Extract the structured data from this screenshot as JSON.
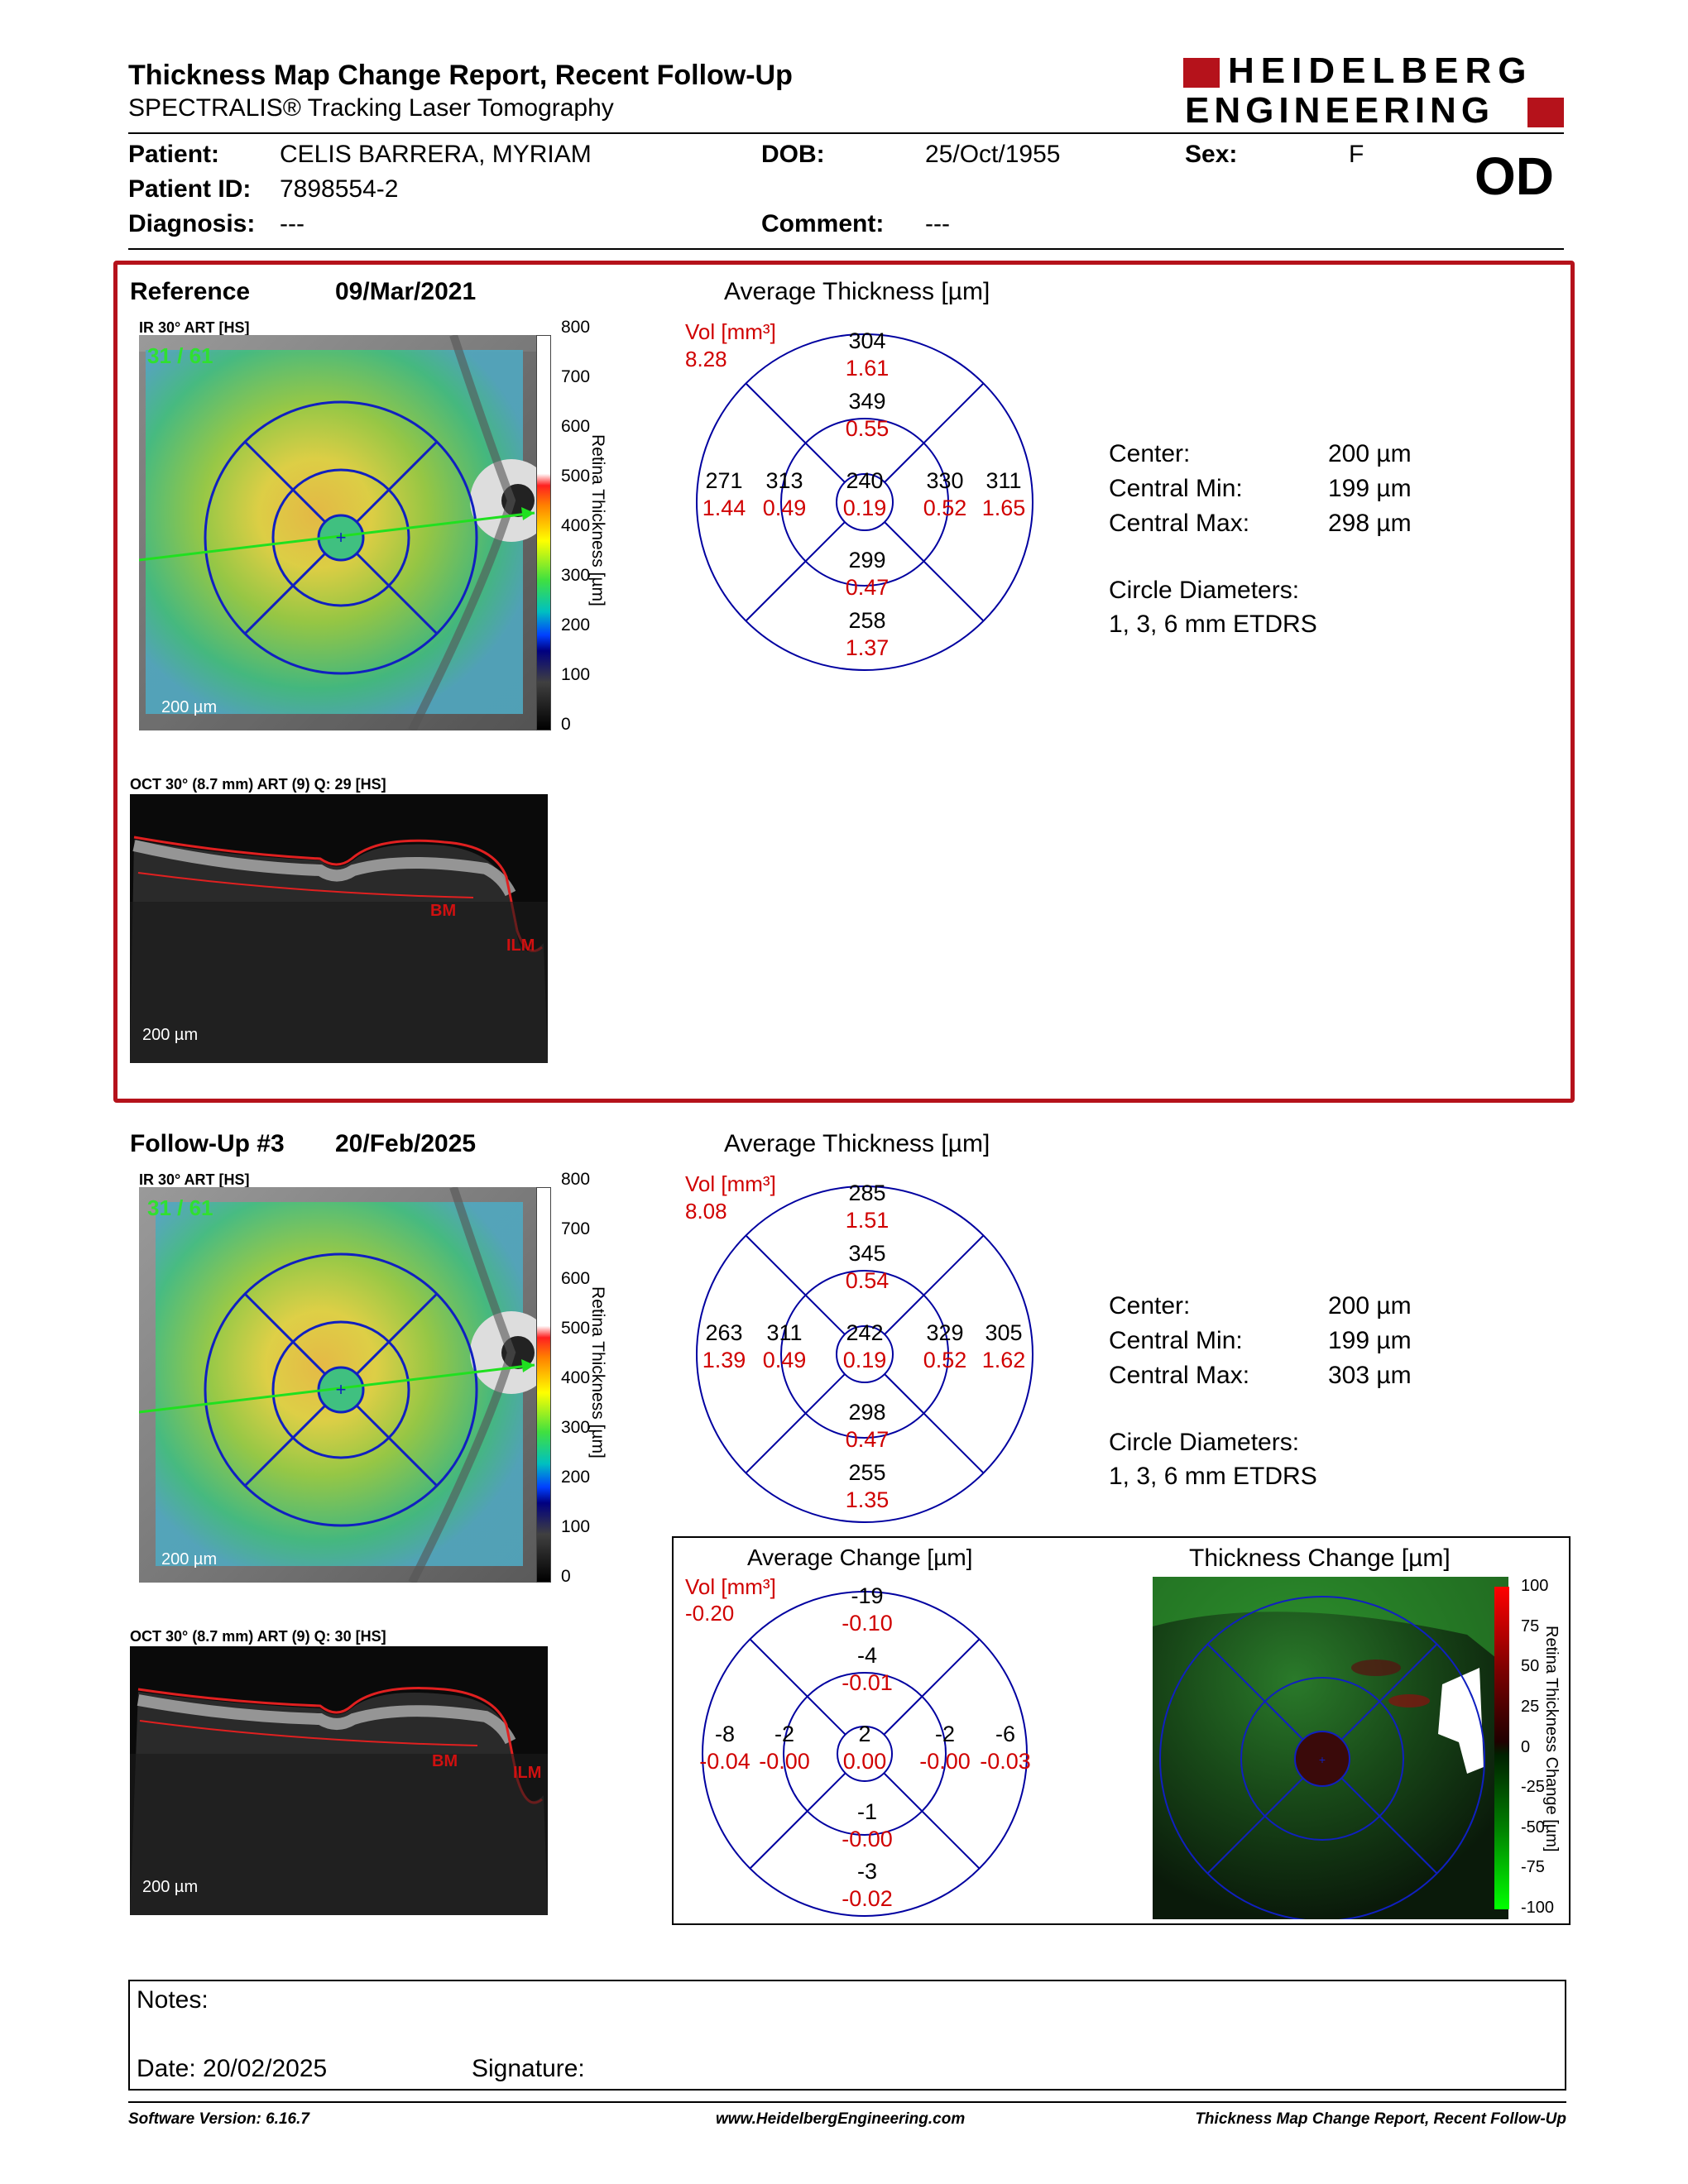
{
  "header": {
    "title": "Thickness Map Change Report, Recent Follow-Up",
    "subtitle": "SPECTRALIS® Tracking Laser Tomography",
    "logo_line1": "HEIDELBERG",
    "logo_line2": "ENGINEERING",
    "eye": "OD"
  },
  "patient": {
    "patient_label": "Patient:",
    "patient_value": "CELIS BARRERA, MYRIAM",
    "id_label": "Patient ID:",
    "id_value": "7898554-2",
    "diagnosis_label": "Diagnosis:",
    "diagnosis_value": "---",
    "dob_label": "DOB:",
    "dob_value": "25/Oct/1955",
    "comment_label": "Comment:",
    "comment_value": "---",
    "sex_label": "Sex:",
    "sex_value": "F"
  },
  "reference": {
    "label": "Reference",
    "date": "09/Mar/2021",
    "ir_label": "IR 30° ART [HS]",
    "ir_overlay": "31 / 61",
    "scale": "200 µm",
    "oct_label": "OCT 30° (8.7 mm) ART (9) Q: 29 [HS]",
    "oct_scale": "200 µm",
    "bm": "BM",
    "ilm": "ILM",
    "avg_title": "Average Thickness [µm]",
    "vol_label": "Vol [mm³]",
    "vol_total": "8.28",
    "grid": {
      "outer_sup": "304",
      "outer_sup_v": "1.61",
      "inner_sup": "349",
      "inner_sup_v": "0.55",
      "outer_temp": "271",
      "outer_temp_v": "1.44",
      "inner_temp": "313",
      "inner_temp_v": "0.49",
      "center": "240",
      "center_v": "0.19",
      "inner_nas": "330",
      "inner_nas_v": "0.52",
      "outer_nas": "311",
      "outer_nas_v": "1.65",
      "inner_inf": "299",
      "inner_inf_v": "0.47",
      "outer_inf": "258",
      "outer_inf_v": "1.37"
    },
    "stats": {
      "center_label": "Center:",
      "center_value": "200 µm",
      "min_label": "Central Min:",
      "min_value": "199 µm",
      "max_label": "Central Max:",
      "max_value": "298 µm",
      "circle_label": "Circle Diameters:",
      "circle_value": "1, 3, 6 mm ETDRS"
    }
  },
  "followup": {
    "label": "Follow-Up #3",
    "date": "20/Feb/2025",
    "ir_label": "IR 30° ART [HS]",
    "ir_overlay": "31 / 61",
    "scale": "200 µm",
    "oct_label": "OCT 30° (8.7 mm) ART (9) Q: 30 [HS]",
    "oct_scale": "200 µm",
    "bm": "BM",
    "ilm": "ILM",
    "avg_title": "Average Thickness [µm]",
    "vol_label": "Vol [mm³]",
    "vol_total": "8.08",
    "grid": {
      "outer_sup": "285",
      "outer_sup_v": "1.51",
      "inner_sup": "345",
      "inner_sup_v": "0.54",
      "outer_temp": "263",
      "outer_temp_v": "1.39",
      "inner_temp": "311",
      "inner_temp_v": "0.49",
      "center": "242",
      "center_v": "0.19",
      "inner_nas": "329",
      "inner_nas_v": "0.52",
      "outer_nas": "305",
      "outer_nas_v": "1.62",
      "inner_inf": "298",
      "inner_inf_v": "0.47",
      "outer_inf": "255",
      "outer_inf_v": "1.35"
    },
    "stats": {
      "center_label": "Center:",
      "center_value": "200 µm",
      "min_label": "Central Min:",
      "min_value": "199 µm",
      "max_label": "Central Max:",
      "max_value": "303 µm",
      "circle_label": "Circle Diameters:",
      "circle_value": "1, 3, 6 mm ETDRS"
    }
  },
  "change": {
    "avg_title": "Average Change [µm]",
    "vol_label": "Vol [mm³]",
    "vol_total": "-0.20",
    "grid": {
      "outer_sup": "-19",
      "outer_sup_v": "-0.10",
      "inner_sup": "-4",
      "inner_sup_v": "-0.01",
      "outer_temp": "-8",
      "outer_temp_v": "-0.04",
      "inner_temp": "-2",
      "inner_temp_v": "-0.00",
      "center": "2",
      "center_v": "0.00",
      "inner_nas": "-2",
      "inner_nas_v": "-0.00",
      "outer_nas": "-6",
      "outer_nas_v": "-0.03",
      "inner_inf": "-1",
      "inner_inf_v": "-0.00",
      "outer_inf": "-3",
      "outer_inf_v": "-0.02"
    },
    "map_title": "Thickness Change [µm]",
    "map_axis": "Retina Thickness Change [µm]",
    "ticks": [
      "100",
      "75",
      "50",
      "25",
      "0",
      "-25",
      "-50",
      "-75",
      "-100"
    ]
  },
  "colorbar": {
    "axis": "Retina Thickness [µm]",
    "ticks": [
      "800",
      "700",
      "600",
      "500",
      "400",
      "300",
      "200",
      "100",
      "0"
    ]
  },
  "notes": {
    "notes_label": "Notes:",
    "date_label": "Date: 20/02/2025",
    "signature_label": "Signature:"
  },
  "footer": {
    "software": "Software Version: 6.16.7",
    "website": "www.HeidelbergEngineering.com",
    "report": "Thickness Map Change Report, Recent Follow-Up"
  },
  "colors": {
    "frame": "#b5121b",
    "grid_blue": "#0000a0",
    "value_red": "#d00000",
    "logo_red": "#b5121b"
  }
}
